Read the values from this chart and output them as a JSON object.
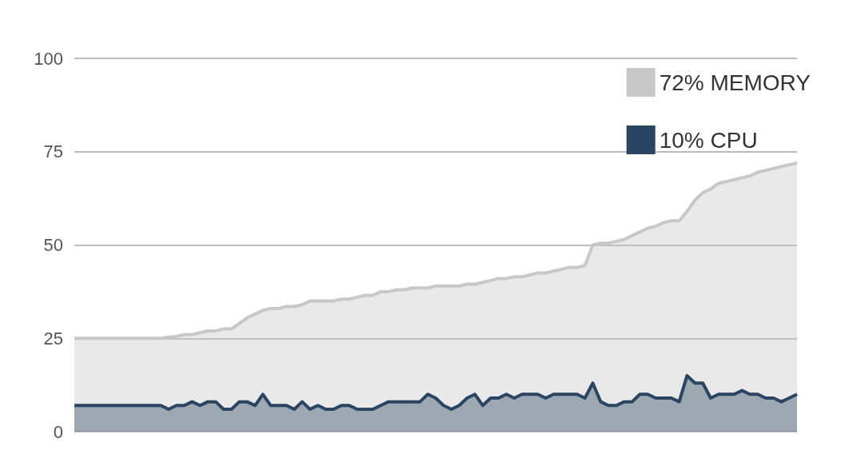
{
  "chart_data": {
    "type": "area",
    "categories": [
      null,
      null,
      null,
      null,
      null,
      null,
      null,
      null,
      null,
      null,
      null,
      null,
      null,
      null,
      null,
      null,
      null,
      null,
      null,
      null,
      null,
      null,
      null,
      null,
      null,
      null,
      null,
      null,
      null,
      null,
      null,
      null,
      null,
      null,
      null,
      null,
      null,
      null,
      null,
      null,
      null,
      null,
      null,
      null,
      null,
      null,
      null,
      null,
      null,
      null,
      null,
      null,
      null,
      null,
      null,
      null,
      null,
      null,
      null,
      null,
      null,
      null,
      null,
      null,
      null,
      null,
      null,
      null,
      null,
      null,
      null,
      null,
      null,
      null,
      null,
      null,
      null,
      null,
      null,
      null,
      null,
      null,
      null,
      null,
      null,
      null,
      null,
      null,
      null,
      null,
      null,
      null,
      null
    ],
    "series": [
      {
        "name": "72% MEMORY",
        "color": "#c8c8c8",
        "values": [
          25,
          25,
          25,
          25,
          25,
          25,
          25,
          25,
          25,
          25,
          25,
          25,
          25.3,
          25.5,
          26,
          26,
          26.5,
          27,
          27,
          27.5,
          27.5,
          29,
          30.5,
          31.5,
          32.5,
          33,
          33,
          33.5,
          33.5,
          34,
          35,
          35,
          35,
          35,
          35.5,
          35.5,
          36,
          36.5,
          36.5,
          37.5,
          37.5,
          38,
          38,
          38.5,
          38.5,
          38.5,
          39,
          39,
          39,
          39,
          39.5,
          39.5,
          40,
          40.5,
          41,
          41,
          41.5,
          41.5,
          42,
          42.5,
          42.5,
          43,
          43.5,
          44,
          44,
          44.5,
          50,
          50.5,
          50.5,
          51,
          51.5,
          52.5,
          53.5,
          54.5,
          55,
          56,
          56.5,
          56.5,
          59,
          62,
          64,
          65,
          66.5,
          67,
          67.5,
          68,
          68.5,
          69.5,
          70,
          70.5,
          71,
          71.5,
          72
        ]
      },
      {
        "name": "10% CPU",
        "color": "#2a4562",
        "values": [
          7,
          7,
          7,
          7,
          7,
          7,
          7,
          7,
          7,
          7,
          7,
          7,
          6,
          7,
          7,
          8,
          7,
          8,
          8,
          6,
          6,
          8,
          8,
          7,
          10,
          7,
          7,
          7,
          6,
          8,
          6,
          7,
          6,
          6,
          7,
          7,
          6,
          6,
          6,
          7,
          8,
          8,
          8,
          8,
          8,
          10,
          9,
          7,
          6,
          7,
          9,
          10,
          7,
          9,
          9,
          10,
          9,
          10,
          10,
          10,
          9,
          10,
          10,
          10,
          10,
          9,
          13,
          8,
          7,
          7,
          8,
          8,
          10,
          10,
          9,
          9,
          9,
          8,
          15,
          13,
          13,
          9,
          10,
          10,
          10,
          11,
          10,
          10,
          9,
          9,
          8,
          9,
          10
        ]
      }
    ],
    "ylim": [
      0,
      100
    ],
    "yticks": [
      0,
      25,
      50,
      75,
      100
    ],
    "grid": "y",
    "legend": "top right",
    "marker": "none"
  }
}
